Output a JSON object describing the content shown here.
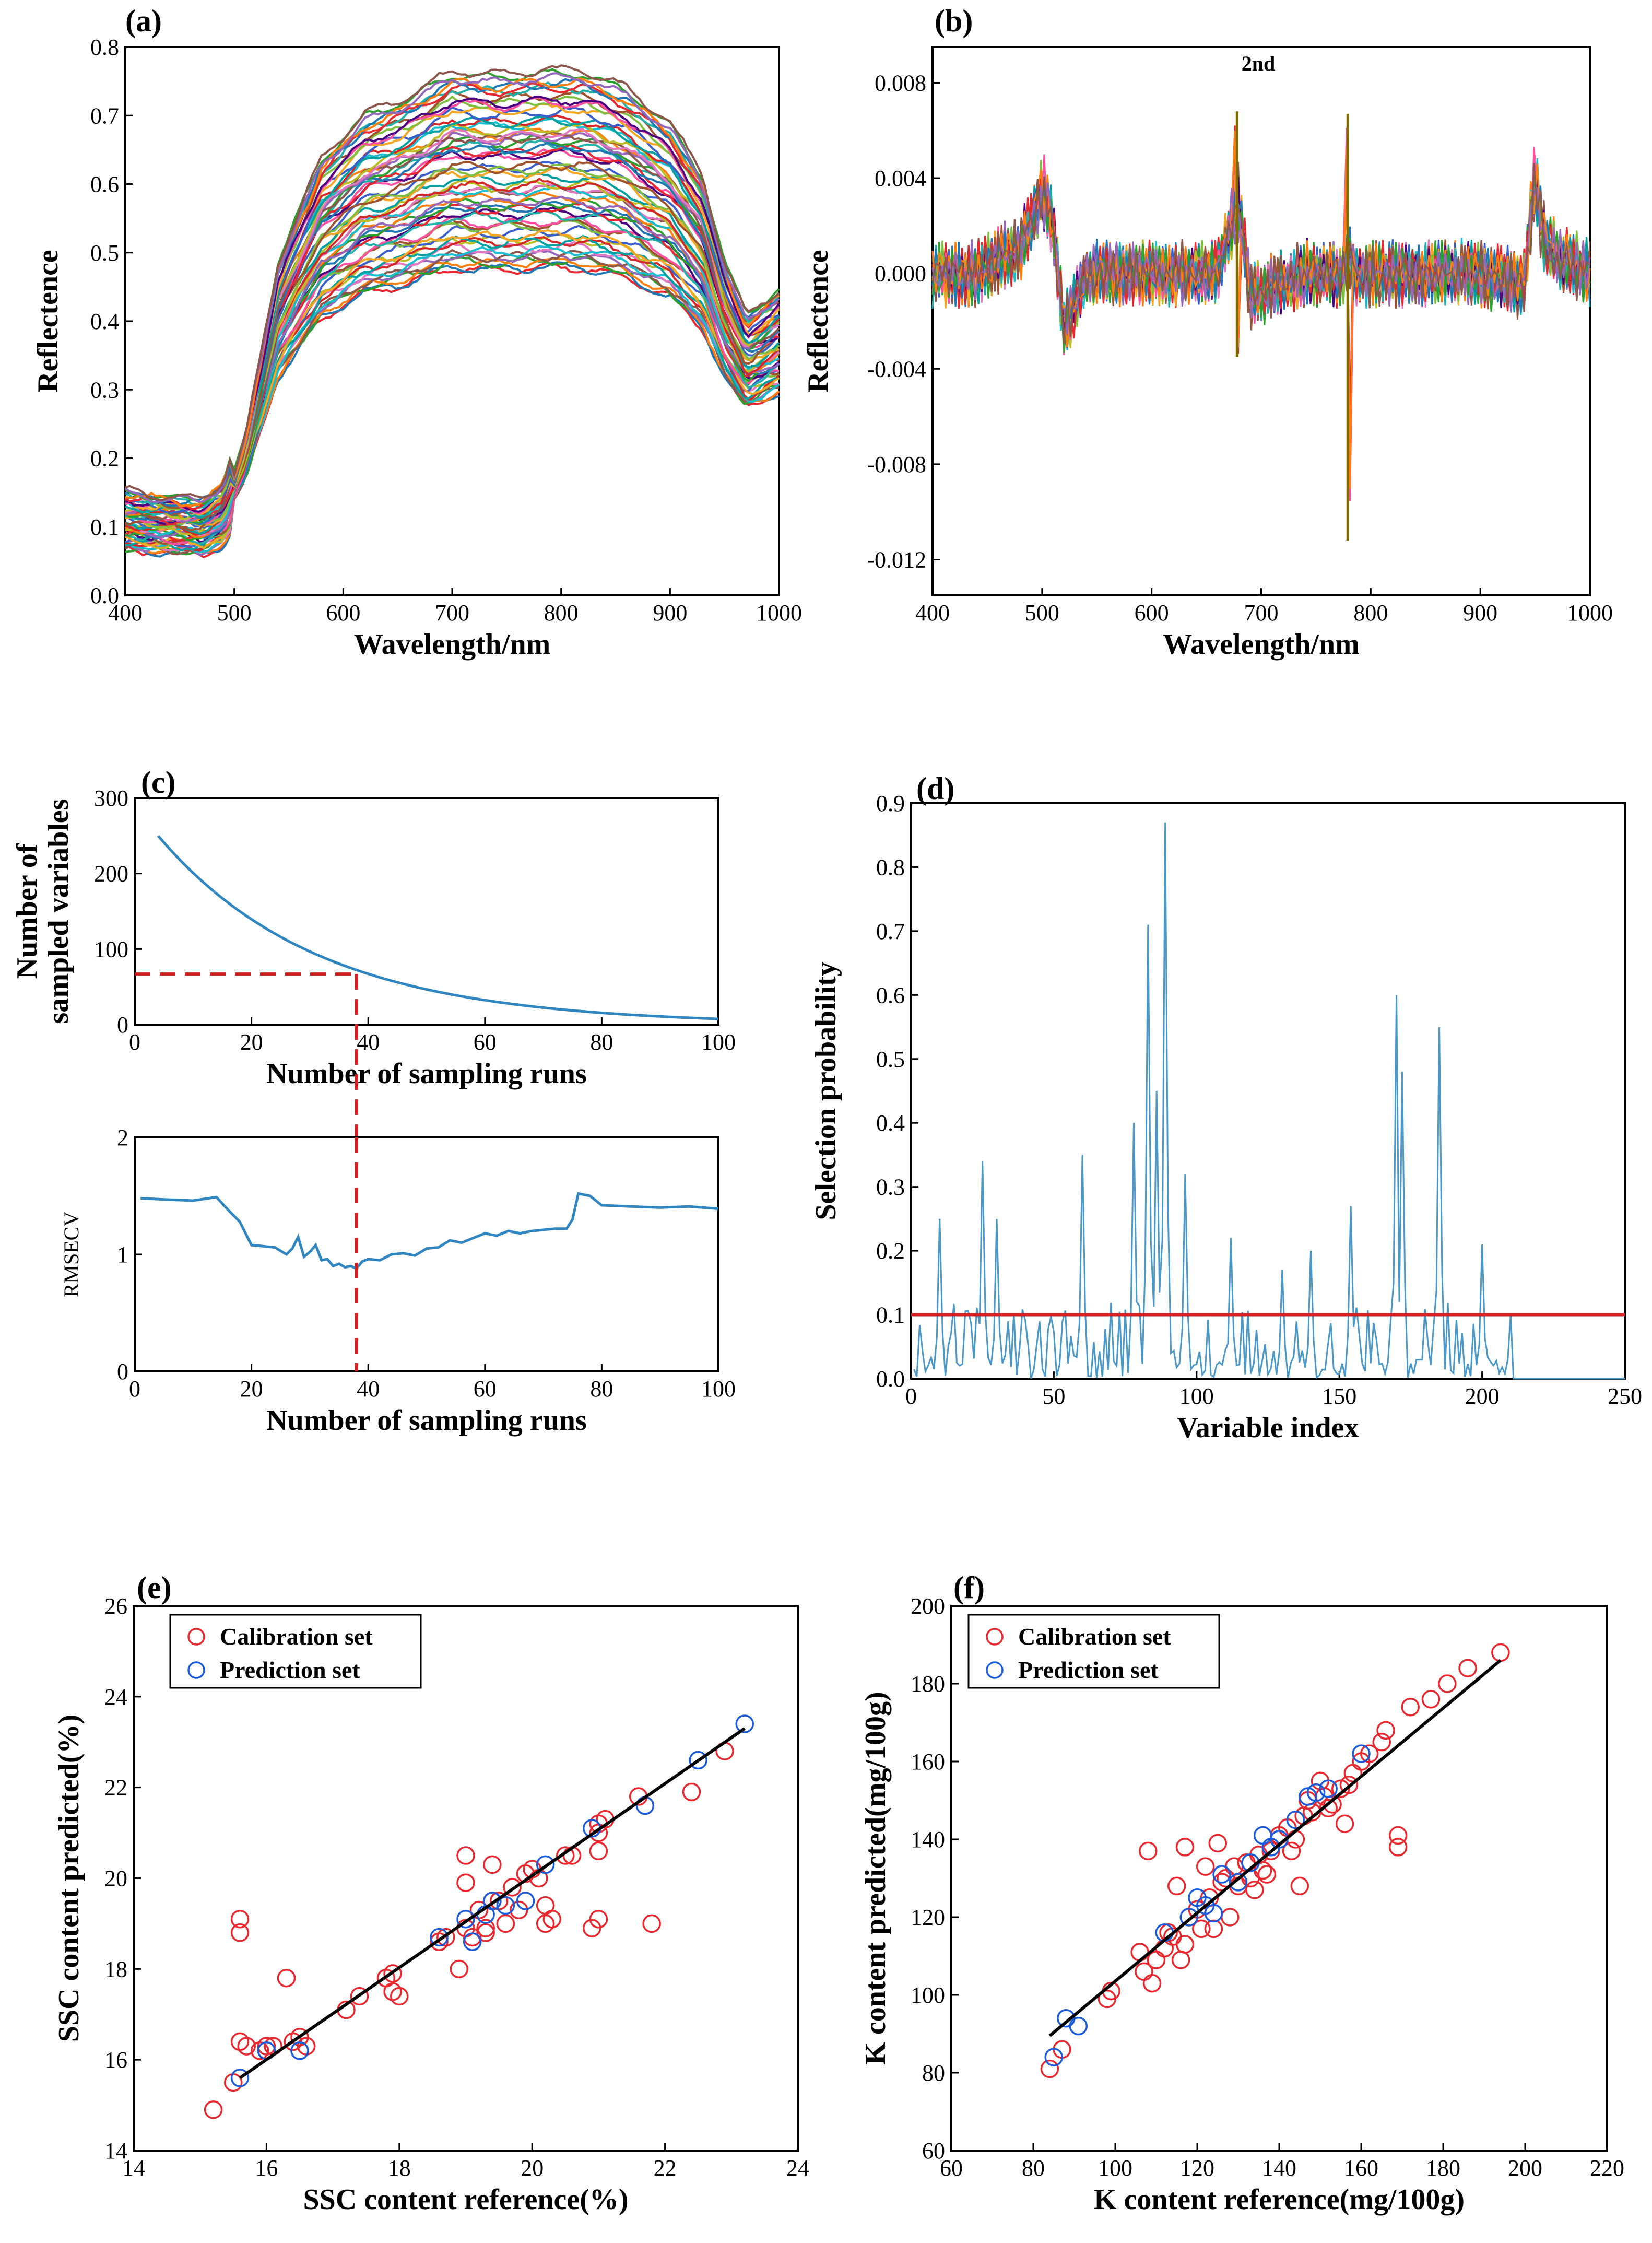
{
  "chart_data": [
    {
      "id": "a",
      "type": "line",
      "panel_label": "(a)",
      "title": "",
      "xlabel": "Wavelength/nm",
      "ylabel": "Reflectence",
      "xlim": [
        400,
        1000
      ],
      "ylim": [
        0.0,
        0.8
      ],
      "xticks": [
        "400",
        "500",
        "600",
        "700",
        "800",
        "900",
        "1000"
      ],
      "yticks": [
        "0.0",
        "0.1",
        "0.2",
        "0.3",
        "0.4",
        "0.5",
        "0.6",
        "0.7",
        "0.8"
      ],
      "n_spectra": 60,
      "spectrum_profile": {
        "x": [
          400,
          430,
          470,
          490,
          510,
          540,
          580,
          620,
          660,
          700,
          740,
          780,
          820,
          860,
          900,
          930,
          950,
          970,
          1000
        ],
        "mean": [
          0.11,
          0.105,
          0.1,
          0.12,
          0.2,
          0.4,
          0.52,
          0.57,
          0.59,
          0.62,
          0.615,
          0.62,
          0.62,
          0.6,
          0.56,
          0.5,
          0.4,
          0.34,
          0.37
        ]
      },
      "grid": false
    },
    {
      "id": "b",
      "type": "line",
      "panel_label": "(b)",
      "annotation": "2nd",
      "xlabel": "Wavelength/nm",
      "ylabel": "Reflectence",
      "xlim": [
        400,
        1000
      ],
      "ylim": [
        -0.0135,
        0.0095
      ],
      "xticks": [
        "400",
        "500",
        "600",
        "700",
        "800",
        "900",
        "1000"
      ],
      "yticks": [
        "-0.012",
        "-0.008",
        "-0.004",
        "0.000",
        "0.004",
        "0.008"
      ],
      "n_spectra": 24,
      "spectrum_profile": {
        "x": [
          400,
          440,
          480,
          500,
          510,
          520,
          540,
          580,
          620,
          660,
          672,
          680,
          690,
          740,
          775,
          780,
          785,
          820,
          900,
          940,
          950,
          960,
          1000
        ],
        "mean": [
          0.0,
          0.0,
          0.001,
          0.0035,
          0.002,
          -0.0025,
          0.0,
          0.0,
          0.0,
          0.0,
          0.002,
          0.003,
          -0.001,
          0.0,
          0.0,
          0.001,
          0.0,
          0.0,
          0.0,
          -0.0005,
          0.004,
          0.001,
          0.0
        ]
      },
      "spikes": [
        {
          "x": 678,
          "max": 0.0068,
          "min": -0.0035
        },
        {
          "x": 779,
          "max": 0.0067,
          "min": -0.0112
        }
      ],
      "grid": false
    },
    {
      "id": "c-top",
      "type": "line",
      "panel_label": "(c)",
      "xlabel": "Number of sampling runs",
      "ylabel": "Number of\nsampled variables",
      "xlim": [
        0,
        100
      ],
      "ylim": [
        0,
        300
      ],
      "xticks": [
        "0",
        "20",
        "40",
        "60",
        "80",
        "100"
      ],
      "yticks": [
        "0",
        "100",
        "200",
        "300"
      ],
      "series": [
        {
          "x": [
            4,
            10,
            20,
            30,
            38,
            50,
            60,
            70,
            80,
            90,
            100
          ],
          "values": [
            250,
            195,
            135,
            92,
            67,
            42,
            28,
            18,
            11,
            6,
            3
          ]
        }
      ],
      "reference": {
        "x": 38,
        "y": 67
      },
      "grid": false
    },
    {
      "id": "c-bottom",
      "type": "line",
      "xlabel": "Number of sampling runs",
      "ylabel": "RMSECV",
      "xlim": [
        0,
        100
      ],
      "ylim": [
        0,
        2
      ],
      "xticks": [
        "0",
        "20",
        "40",
        "60",
        "80",
        "100"
      ],
      "yticks": [
        "0",
        "1",
        "2"
      ],
      "series": [
        {
          "x": [
            1,
            5,
            10,
            14,
            16,
            18,
            20,
            22,
            24,
            26,
            27,
            28,
            29,
            30,
            31,
            32,
            33,
            34,
            35,
            36,
            37,
            38,
            39,
            40,
            42,
            44,
            46,
            48,
            50,
            52,
            54,
            56,
            58,
            60,
            62,
            64,
            66,
            68,
            70,
            72,
            74,
            75,
            76,
            78,
            80,
            85,
            90,
            95,
            100
          ],
          "values": [
            1.48,
            1.47,
            1.46,
            1.49,
            1.38,
            1.28,
            1.08,
            1.07,
            1.06,
            1.0,
            1.05,
            1.15,
            0.98,
            1.02,
            1.08,
            0.95,
            0.96,
            0.9,
            0.92,
            0.89,
            0.9,
            0.88,
            0.94,
            0.96,
            0.95,
            1.0,
            1.01,
            0.99,
            1.05,
            1.06,
            1.12,
            1.1,
            1.14,
            1.18,
            1.16,
            1.2,
            1.18,
            1.2,
            1.21,
            1.22,
            1.22,
            1.3,
            1.52,
            1.5,
            1.42,
            1.41,
            1.4,
            1.41,
            1.39
          ]
        }
      ],
      "reference": {
        "x": 38
      },
      "grid": false
    },
    {
      "id": "d",
      "type": "line",
      "panel_label": "(d)",
      "xlabel": "Variable index",
      "ylabel": "Selection probability",
      "xlim": [
        0,
        250
      ],
      "ylim": [
        0,
        0.9
      ],
      "xticks": [
        "0",
        "50",
        "100",
        "150",
        "200",
        "250"
      ],
      "yticks": [
        "0.0",
        "0.1",
        "0.2",
        "0.3",
        "0.4",
        "0.5",
        "0.6",
        "0.7",
        "0.8",
        "0.9"
      ],
      "threshold": 0.1,
      "peaks": [
        {
          "x": 9,
          "y": 0.25
        },
        {
          "x": 24,
          "y": 0.34
        },
        {
          "x": 29,
          "y": 0.25
        },
        {
          "x": 59,
          "y": 0.35
        },
        {
          "x": 77,
          "y": 0.4
        },
        {
          "x": 82,
          "y": 0.71
        },
        {
          "x": 85,
          "y": 0.45
        },
        {
          "x": 88,
          "y": 0.87
        },
        {
          "x": 95,
          "y": 0.32
        },
        {
          "x": 111,
          "y": 0.22
        },
        {
          "x": 129,
          "y": 0.17
        },
        {
          "x": 139,
          "y": 0.2
        },
        {
          "x": 153,
          "y": 0.27
        },
        {
          "x": 169,
          "y": 0.6
        },
        {
          "x": 171,
          "y": 0.48
        },
        {
          "x": 184,
          "y": 0.55
        },
        {
          "x": 199,
          "y": 0.21
        }
      ],
      "grid": false
    },
    {
      "id": "e",
      "type": "scatter",
      "panel_label": "(e)",
      "xlabel": "SSC content reference(%)",
      "ylabel": "SSC content predicted(%)",
      "xlim": [
        14,
        24
      ],
      "ylim": [
        14,
        26
      ],
      "xticks": [
        "14",
        "16",
        "18",
        "20",
        "22",
        "24"
      ],
      "yticks": [
        "14",
        "16",
        "18",
        "20",
        "22",
        "24",
        "26"
      ],
      "series": [
        {
          "name": "Calibration set",
          "x": [
            15.2,
            15.5,
            15.6,
            15.6,
            15.6,
            15.7,
            15.9,
            16.0,
            16.1,
            16.3,
            16.4,
            16.5,
            16.6,
            17.2,
            17.4,
            17.8,
            17.9,
            17.9,
            18.0,
            18.6,
            18.7,
            18.9,
            19.0,
            19.0,
            19.0,
            19.1,
            19.2,
            19.3,
            19.3,
            19.4,
            19.4,
            19.5,
            19.6,
            19.7,
            19.8,
            19.9,
            20.0,
            20.1,
            20.2,
            20.2,
            20.3,
            20.5,
            20.6,
            20.9,
            21.0,
            21.0,
            21.0,
            21.0,
            21.1,
            21.6,
            21.7,
            21.8,
            22.4,
            22.9
          ],
          "y": [
            14.9,
            15.5,
            19.1,
            18.8,
            16.4,
            16.3,
            16.2,
            16.3,
            16.3,
            17.8,
            16.4,
            16.5,
            16.3,
            17.1,
            17.4,
            17.8,
            17.9,
            17.5,
            17.4,
            18.6,
            18.7,
            18.0,
            19.9,
            20.5,
            18.9,
            18.7,
            19.3,
            18.8,
            18.9,
            19.5,
            20.3,
            19.5,
            19.0,
            19.8,
            19.3,
            20.1,
            20.2,
            20.0,
            19.0,
            19.4,
            19.1,
            20.5,
            20.5,
            18.9,
            19.1,
            21.2,
            21.0,
            20.6,
            21.3,
            21.8,
            21.6,
            19.0,
            21.9,
            22.8
          ],
          "color": "#e8282e"
        },
        {
          "name": "Prediction set",
          "x": [
            15.6,
            16.0,
            16.5,
            18.6,
            19.0,
            19.1,
            19.3,
            19.4,
            19.6,
            19.9,
            20.2,
            20.9,
            21.7,
            22.5,
            23.2
          ],
          "y": [
            15.6,
            16.2,
            16.2,
            18.7,
            19.1,
            18.6,
            19.2,
            19.5,
            19.4,
            19.5,
            20.3,
            21.1,
            21.6,
            22.6,
            23.4
          ],
          "color": "#1a5bdc"
        }
      ],
      "fit_line": {
        "x": [
          15.6,
          23.2
        ],
        "y": [
          15.6,
          23.3
        ]
      },
      "legend_position": "top-left",
      "grid": false
    },
    {
      "id": "f",
      "type": "scatter",
      "panel_label": "(f)",
      "xlabel": "K content reference(mg/100g)",
      "ylabel": "K content predicted(mg/100g)",
      "xlim": [
        60,
        220
      ],
      "ylim": [
        60,
        200
      ],
      "xticks": [
        "60",
        "80",
        "100",
        "120",
        "140",
        "160",
        "180",
        "200",
        "220"
      ],
      "yticks": [
        "60",
        "80",
        "100",
        "120",
        "140",
        "160",
        "180",
        "200"
      ],
      "series": [
        {
          "name": "Calibration set",
          "x": [
            84,
            87,
            98,
            99,
            106,
            107,
            108,
            109,
            110,
            112,
            113,
            114,
            115,
            116,
            117,
            117,
            118,
            120,
            121,
            122,
            123,
            124,
            125,
            126,
            127,
            128,
            129,
            130,
            132,
            133,
            134,
            135,
            136,
            137,
            138,
            140,
            142,
            143,
            144,
            145,
            146,
            147,
            148,
            150,
            151,
            152,
            153,
            155,
            156,
            157,
            158,
            160,
            162,
            165,
            166,
            169,
            169,
            172,
            177,
            181,
            186,
            194
          ],
          "y": [
            81,
            86,
            99,
            101,
            111,
            106,
            137,
            103,
            109,
            112,
            116,
            115,
            128,
            109,
            138,
            113,
            120,
            122,
            117,
            133,
            125,
            117,
            139,
            129,
            130,
            120,
            133,
            128,
            134,
            130,
            127,
            136,
            132,
            131,
            137,
            141,
            143,
            137,
            140,
            128,
            146,
            150,
            147,
            155,
            151,
            148,
            149,
            153,
            144,
            154,
            157,
            160,
            162,
            165,
            168,
            141,
            138,
            174,
            176,
            180,
            184,
            188
          ],
          "color": "#e8282e"
        },
        {
          "name": "Prediction set",
          "x": [
            85,
            88,
            91,
            112,
            118,
            120,
            122,
            124,
            126,
            130,
            133,
            136,
            138,
            140,
            144,
            147,
            149,
            152,
            160
          ],
          "y": [
            84,
            94,
            92,
            116,
            120,
            125,
            123,
            121,
            131,
            129,
            134,
            141,
            138,
            140,
            145,
            151,
            152,
            153,
            162
          ],
          "color": "#1a5bdc"
        }
      ],
      "fit_line": {
        "x": [
          84,
          194
        ],
        "y": [
          89.5,
          186
        ]
      },
      "legend_position": "top-left",
      "grid": false
    }
  ]
}
